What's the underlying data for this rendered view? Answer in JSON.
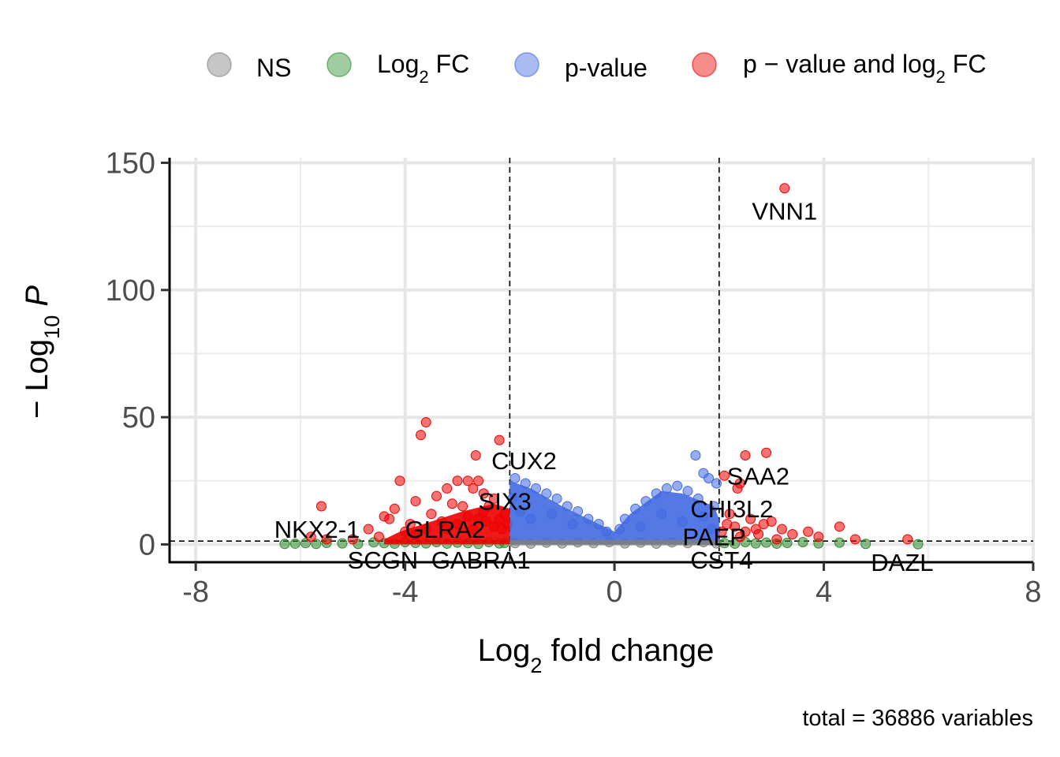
{
  "chart_data": {
    "type": "scatter",
    "title": "",
    "xlabel": {
      "base": "Log",
      "sub": "2",
      "rest": " fold change"
    },
    "ylabel": {
      "prefix": "− Log",
      "sub": "10",
      "italic": "P"
    },
    "xlim": [
      -8.5,
      8
    ],
    "ylim": [
      -7,
      152
    ],
    "xticks": [
      -8,
      -4,
      0,
      4,
      8
    ],
    "xtick_labels": [
      "-8",
      "-4",
      "0",
      "4",
      "8"
    ],
    "yticks": [
      0,
      50,
      100,
      150
    ],
    "ytick_labels": [
      "0",
      "50",
      "100",
      "150"
    ],
    "grid": true,
    "legend_position": "top",
    "fc_cutoff": 2,
    "p_cutoff_neglog10": 1.3,
    "caption": "total = 36886 variables",
    "legend": [
      {
        "key": "ns",
        "parts": [
          {
            "t": "NS"
          }
        ],
        "color": "#808080"
      },
      {
        "key": "fc",
        "parts": [
          {
            "t": "Log"
          },
          {
            "t": "2",
            "sub": true
          },
          {
            "t": " FC"
          }
        ],
        "color": "#2e8b2e"
      },
      {
        "key": "p",
        "parts": [
          {
            "t": "p-value"
          }
        ],
        "color": "#4169e1"
      },
      {
        "key": "pfc",
        "parts": [
          {
            "t": "p − value and log"
          },
          {
            "t": "2",
            "sub": true
          },
          {
            "t": " FC"
          }
        ],
        "color": "#ee0000"
      }
    ],
    "series": [
      {
        "name": "p − value and log2 FC",
        "color": "#ee0000",
        "points": [
          [
            3.25,
            140
          ],
          [
            -3.6,
            48
          ],
          [
            -3.7,
            43
          ],
          [
            -2.2,
            41
          ],
          [
            -2.65,
            35
          ],
          [
            2.9,
            36
          ],
          [
            2.5,
            35
          ],
          [
            -4.1,
            25
          ],
          [
            -2.6,
            25
          ],
          [
            -2.8,
            25
          ],
          [
            -3.0,
            25
          ],
          [
            2.1,
            27
          ],
          [
            2.4,
            24
          ],
          [
            2.35,
            22
          ],
          [
            -3.8,
            17
          ],
          [
            -3.4,
            19
          ],
          [
            -3.2,
            22
          ],
          [
            -2.7,
            22
          ],
          [
            -2.5,
            20
          ],
          [
            -2.3,
            18
          ],
          [
            -4.2,
            14
          ],
          [
            -3.1,
            16
          ],
          [
            -2.9,
            15
          ],
          [
            -2.4,
            15
          ],
          [
            -5.6,
            15
          ],
          [
            -4.4,
            11
          ],
          [
            -4.3,
            10
          ],
          [
            -3.9,
            8
          ],
          [
            -3.5,
            12
          ],
          [
            -3.3,
            9
          ],
          [
            -2.8,
            11
          ],
          [
            -2.6,
            10
          ],
          [
            -2.5,
            13
          ],
          [
            -2.2,
            10
          ],
          [
            -2.1,
            12
          ],
          [
            -2.05,
            8
          ],
          [
            -2.15,
            6
          ],
          [
            -2.3,
            7
          ],
          [
            -2.45,
            9
          ],
          [
            -2.7,
            6
          ],
          [
            -3.0,
            8
          ],
          [
            -3.2,
            6
          ],
          [
            -3.6,
            6
          ],
          [
            -3.8,
            4
          ],
          [
            -4.0,
            5
          ],
          [
            -4.5,
            3
          ],
          [
            -5.0,
            2
          ],
          [
            -5.5,
            2
          ],
          [
            -5.8,
            3
          ],
          [
            -4.7,
            6
          ],
          [
            2.05,
            5
          ],
          [
            2.15,
            8
          ],
          [
            2.3,
            7
          ],
          [
            2.5,
            5
          ],
          [
            2.7,
            6
          ],
          [
            2.85,
            8
          ],
          [
            3.0,
            9
          ],
          [
            3.2,
            6
          ],
          [
            3.4,
            4
          ],
          [
            3.7,
            5
          ],
          [
            3.9,
            3
          ],
          [
            4.3,
            7
          ],
          [
            4.6,
            2
          ],
          [
            5.6,
            2
          ],
          [
            2.2,
            12
          ],
          [
            2.6,
            10
          ],
          [
            2.75,
            4
          ],
          [
            2.4,
            3
          ],
          [
            3.1,
            2
          ]
        ]
      },
      {
        "name": "Log2 FC",
        "color": "#2e8b2e",
        "points": [
          [
            -6.3,
            0.2
          ],
          [
            -6.1,
            0.3
          ],
          [
            -5.9,
            0.5
          ],
          [
            -5.7,
            0.2
          ],
          [
            -5.5,
            0.6
          ],
          [
            -5.2,
            0.4
          ],
          [
            -4.9,
            0.2
          ],
          [
            -4.6,
            0.8
          ],
          [
            -4.4,
            0.5
          ],
          [
            -4.2,
            0.3
          ],
          [
            -4.0,
            0.9
          ],
          [
            -3.8,
            0.6
          ],
          [
            -3.6,
            0.4
          ],
          [
            -3.4,
            0.9
          ],
          [
            -3.2,
            0.3
          ],
          [
            -3.0,
            0.7
          ],
          [
            -2.8,
            0.5
          ],
          [
            -2.6,
            0.2
          ],
          [
            -2.4,
            0.9
          ],
          [
            -2.2,
            0.4
          ],
          [
            -2.1,
            0.6
          ],
          [
            2.1,
            0.5
          ],
          [
            2.3,
            0.3
          ],
          [
            2.5,
            0.9
          ],
          [
            2.7,
            0.4
          ],
          [
            2.9,
            0.7
          ],
          [
            3.1,
            0.3
          ],
          [
            3.3,
            0.6
          ],
          [
            3.6,
            0.9
          ],
          [
            3.9,
            0.4
          ],
          [
            4.3,
            0.7
          ],
          [
            4.8,
            0.2
          ],
          [
            5.8,
            0.1
          ]
        ]
      },
      {
        "name": "p-value",
        "color": "#4169e1",
        "points": [
          [
            1.55,
            35
          ],
          [
            1.7,
            28
          ],
          [
            1.8,
            26
          ],
          [
            1.95,
            24
          ],
          [
            -1.9,
            26
          ],
          [
            -1.7,
            24
          ],
          [
            -1.5,
            22
          ],
          [
            -1.3,
            20
          ],
          [
            -1.1,
            18
          ],
          [
            -0.9,
            15
          ],
          [
            -0.7,
            13
          ],
          [
            -0.5,
            10
          ],
          [
            -0.3,
            8
          ],
          [
            -0.15,
            5
          ],
          [
            1.0,
            22
          ],
          [
            0.8,
            20
          ],
          [
            0.6,
            17
          ],
          [
            0.4,
            14
          ],
          [
            0.2,
            10
          ],
          [
            0.1,
            6
          ],
          [
            1.2,
            23
          ],
          [
            1.4,
            21
          ],
          [
            1.6,
            18
          ],
          [
            1.9,
            15
          ],
          [
            -1.95,
            18
          ],
          [
            -1.8,
            13
          ],
          [
            -1.6,
            10
          ],
          [
            -1.2,
            12
          ],
          [
            -0.8,
            8
          ],
          [
            0.5,
            7
          ],
          [
            0.9,
            12
          ],
          [
            1.3,
            9
          ],
          [
            1.7,
            11
          ],
          [
            1.85,
            6
          ]
        ]
      },
      {
        "name": "NS",
        "color": "#808080",
        "points": [
          [
            -1.9,
            0.5
          ],
          [
            -1.6,
            0.3
          ],
          [
            -1.3,
            0.7
          ],
          [
            -1.0,
            0.4
          ],
          [
            -0.7,
            0.8
          ],
          [
            -0.4,
            0.5
          ],
          [
            -0.1,
            0.9
          ],
          [
            0.2,
            0.4
          ],
          [
            0.5,
            0.7
          ],
          [
            0.8,
            0.3
          ],
          [
            1.1,
            0.8
          ],
          [
            1.4,
            0.5
          ],
          [
            1.7,
            0.9
          ],
          [
            1.95,
            0.4
          ]
        ]
      }
    ],
    "labels": [
      {
        "text": "VNN1",
        "x": 3.25,
        "y": 140,
        "dx": 0,
        "dy": -40
      },
      {
        "text": "CUX2",
        "x": -2.35,
        "y": 33,
        "dx": 0,
        "dy": 0
      },
      {
        "text": "SAA2",
        "x": 2.15,
        "y": 27,
        "dx": 0,
        "dy": 0
      },
      {
        "text": "SIX3",
        "x": -2.6,
        "y": 17,
        "dx": 0,
        "dy": 0
      },
      {
        "text": "CHI3L2",
        "x": 1.45,
        "y": 14,
        "dx": 0,
        "dy": 0
      },
      {
        "text": "NKX2-1",
        "x": -6.5,
        "y": 6,
        "dx": 0,
        "dy": 0
      },
      {
        "text": "GLRA2",
        "x": -4.0,
        "y": 6,
        "dx": 0,
        "dy": 0
      },
      {
        "text": "PAEP",
        "x": 1.3,
        "y": 3,
        "dx": 0,
        "dy": 0
      },
      {
        "text": "SCGN",
        "x": -5.1,
        "y": -6,
        "dx": 0,
        "dy": 0
      },
      {
        "text": "GABRA1",
        "x": -3.5,
        "y": -6,
        "dx": 0,
        "dy": 0
      },
      {
        "text": "CST4",
        "x": 1.45,
        "y": -6,
        "dx": 0,
        "dy": 0
      },
      {
        "text": "DAZL",
        "x": 4.9,
        "y": -7,
        "dx": 0,
        "dy": 0
      }
    ]
  }
}
